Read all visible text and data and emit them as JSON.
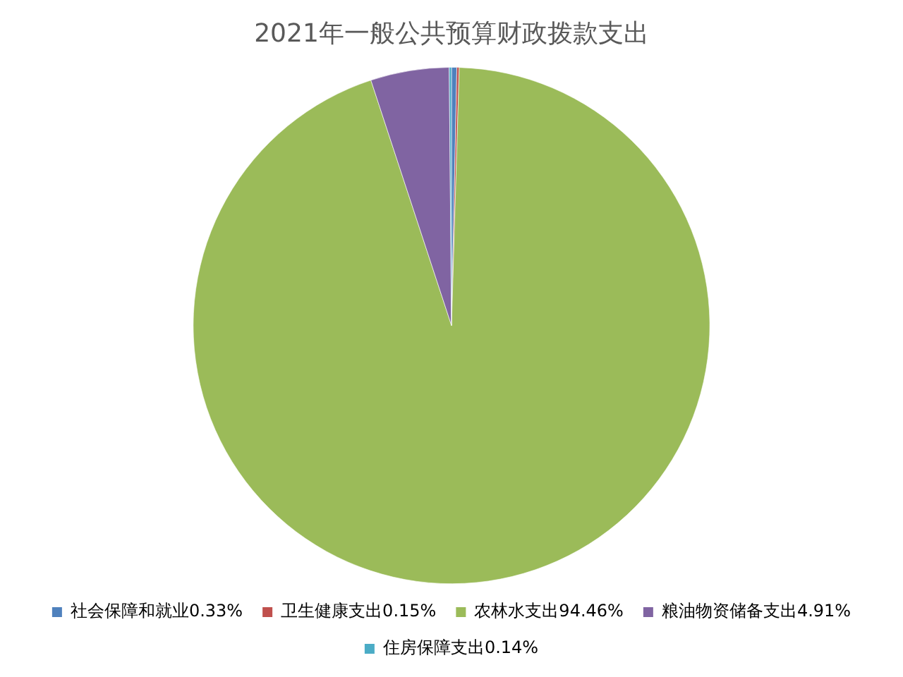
{
  "chart_data": {
    "type": "pie",
    "title": "2021年一般公共预算财政拨款支出",
    "categories": [
      "社会保障和就业",
      "卫生健康支出",
      "农林水支出",
      "粮油物资储备支出",
      "住房保障支出"
    ],
    "values": [
      0.33,
      0.15,
      94.46,
      4.91,
      0.14
    ],
    "value_labels": [
      "0.33%",
      "0.15%",
      "94.46%",
      "4.91%",
      "0.14%"
    ],
    "colors": [
      "#4f81bd",
      "#c0504d",
      "#9bbb59",
      "#8064a2",
      "#4bacc6"
    ],
    "legend": "bottom"
  }
}
